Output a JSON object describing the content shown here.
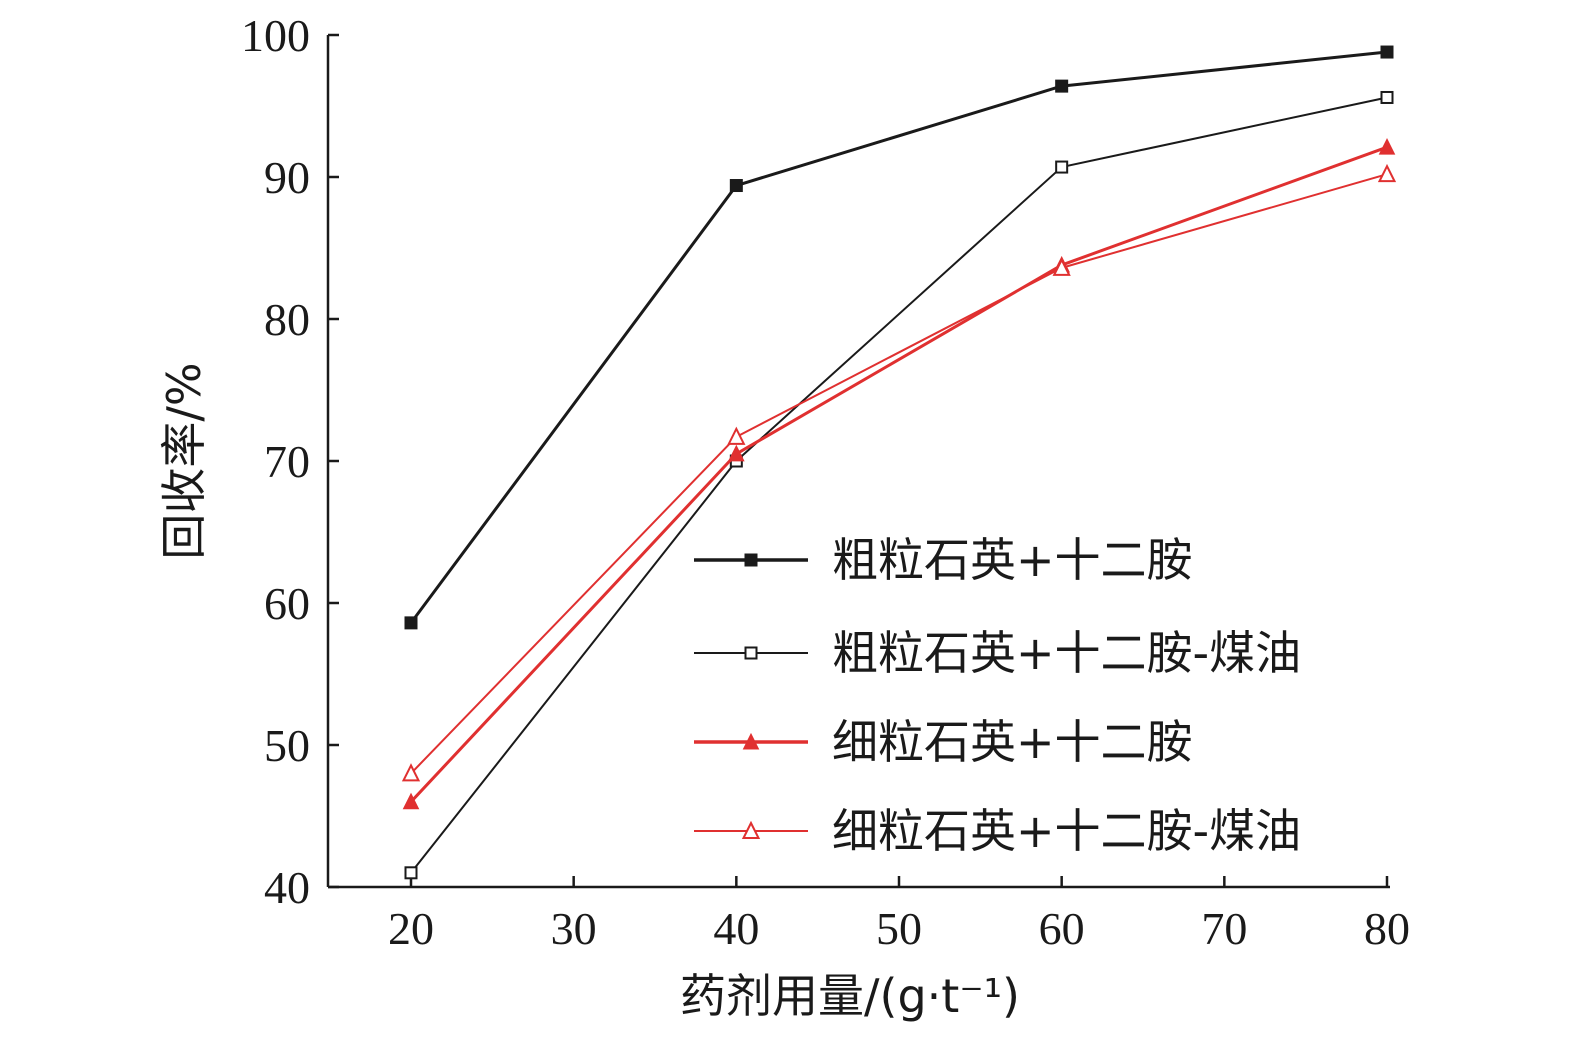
{
  "chart_data": {
    "type": "line",
    "xlabel": "药剂用量/(g·t⁻¹)",
    "ylabel": "回收率/%",
    "xlim": [
      15,
      80
    ],
    "ylim": [
      40,
      100
    ],
    "xticks": [
      20,
      30,
      40,
      50,
      60,
      70,
      80
    ],
    "yticks": [
      40,
      50,
      60,
      70,
      80,
      90,
      100
    ],
    "x": [
      20,
      40,
      60,
      80
    ],
    "legend_position": "lower-right",
    "grid": false,
    "series": [
      {
        "name": "粗粒石英+十二胺",
        "values": [
          58.6,
          89.4,
          96.4,
          98.8
        ],
        "color": "#1a1a1a",
        "marker": "square-filled",
        "line_weight": "heavy"
      },
      {
        "name": "粗粒石英+十二胺-煤油",
        "values": [
          41.0,
          70.0,
          90.7,
          95.6
        ],
        "color": "#1a1a1a",
        "marker": "square-open",
        "line_weight": "light"
      },
      {
        "name": "细粒石英+十二胺",
        "values": [
          46.0,
          70.5,
          83.8,
          92.1
        ],
        "color": "#e03030",
        "marker": "triangle-filled",
        "line_weight": "heavy"
      },
      {
        "name": "细粒石英+十二胺-煤油",
        "values": [
          48.0,
          71.7,
          83.6,
          90.2
        ],
        "color": "#e03030",
        "marker": "triangle-open",
        "line_weight": "light"
      }
    ]
  }
}
